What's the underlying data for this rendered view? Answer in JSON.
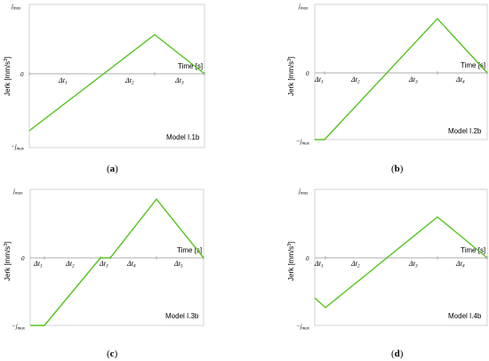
{
  "panels": [
    {
      "caption_open": "(",
      "caption_letter": "a",
      "caption_close": ")",
      "model": "Model I.1b",
      "y_top": "j",
      "y_top_sub": "max",
      "y_zero": "0",
      "y_bot": "−j",
      "y_bot_sub": "max",
      "ylabel": "Jerk [mm/s",
      "ylabel_sup": "3",
      "ylabel_end": "]",
      "xlabel": "Time [s]",
      "intervals": [
        {
          "delta": "Δt",
          "sub": "1"
        },
        {
          "delta": "Δt",
          "sub": "2"
        },
        {
          "delta": "Δt",
          "sub": "3"
        }
      ]
    },
    {
      "caption_open": "(",
      "caption_letter": "b",
      "caption_close": ")",
      "model": "Model I.2b",
      "y_top": "j",
      "y_top_sub": "max",
      "y_zero": "0",
      "y_bot": "−j",
      "y_bot_sub": "max",
      "ylabel": "Jerk [mm/s",
      "ylabel_sup": "3",
      "ylabel_end": "]",
      "xlabel": "Time [s]",
      "intervals": [
        {
          "delta": "Δt",
          "sub": "1"
        },
        {
          "delta": "Δt",
          "sub": "2"
        },
        {
          "delta": "Δt",
          "sub": "3"
        },
        {
          "delta": "Δt",
          "sub": "4"
        }
      ]
    },
    {
      "caption_open": "(",
      "caption_letter": "c",
      "caption_close": ")",
      "model": "Model I.3b",
      "y_top": "j",
      "y_top_sub": "max",
      "y_zero": "0",
      "y_bot": "−j",
      "y_bot_sub": "max",
      "ylabel": "Jerk [mm/s",
      "ylabel_sup": "3",
      "ylabel_end": "]",
      "xlabel": "Time [s]",
      "intervals": [
        {
          "delta": "Δt",
          "sub": "1"
        },
        {
          "delta": "Δt",
          "sub": "2"
        },
        {
          "delta": "Δt",
          "sub": "3"
        },
        {
          "delta": "Δt",
          "sub": "4"
        },
        {
          "delta": "Δt",
          "sub": "5"
        }
      ]
    },
    {
      "caption_open": "(",
      "caption_letter": "d",
      "caption_close": ")",
      "model": "Model I.4b",
      "y_top": "j",
      "y_top_sub": "max",
      "y_zero": "0",
      "y_bot": "−j",
      "y_bot_sub": "max",
      "ylabel": "Jerk [mm/s",
      "ylabel_sup": "3",
      "ylabel_end": "]",
      "xlabel": "Time [s]",
      "intervals": [
        {
          "delta": "Δt",
          "sub": "1"
        },
        {
          "delta": "Δt",
          "sub": "2"
        },
        {
          "delta": "Δt",
          "sub": "3"
        },
        {
          "delta": "Δt",
          "sub": "4"
        }
      ]
    }
  ],
  "colors": {
    "curve": "#55c51e",
    "frame": "#c8c8c8",
    "axis": "#909090"
  }
}
